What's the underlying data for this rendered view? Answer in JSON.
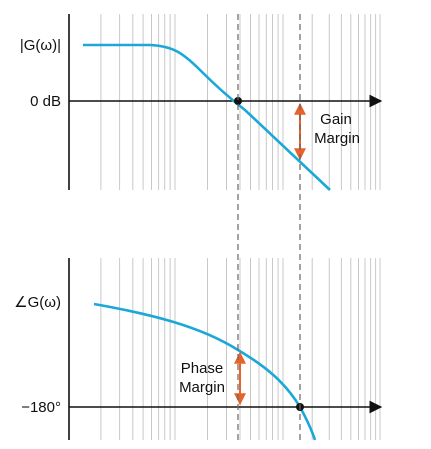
{
  "figure": {
    "top_plot": {
      "ylabel": "|G(ω)|",
      "zero_label": "0 dB",
      "annotation_line1": "Gain",
      "annotation_line2": "Margin"
    },
    "bottom_plot": {
      "ylabel": "∠G(ω)",
      "reference_label": "−180°",
      "annotation_line1": "Phase",
      "annotation_line2": "Margin"
    }
  },
  "colors": {
    "curve": "#1ba8d8",
    "arrow": "#e8632a",
    "axis": "#111111",
    "grid": "#c8c8c8",
    "dashed": "#666666",
    "marker": "#111111"
  }
}
